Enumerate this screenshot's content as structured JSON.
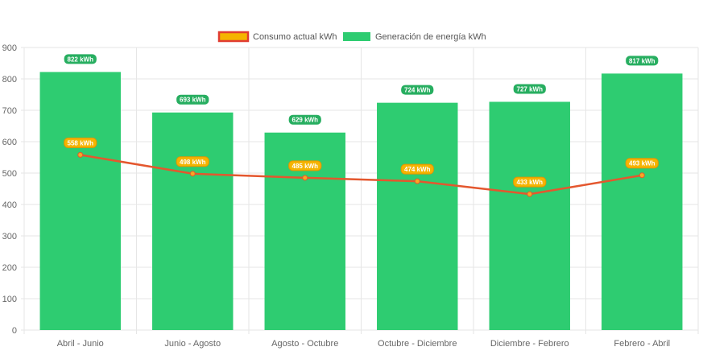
{
  "colors": {
    "bar_fill": "#2ecc71",
    "line_stroke": "#e4572e",
    "point_fill": "#f7a823",
    "consumo_label_bg": "#f5b400",
    "consumo_label_border": "#e59400",
    "generacion_label_bg": "#27ae60",
    "legend_consumo_fill": "#f5b400",
    "legend_consumo_border": "#e03c31",
    "grid": "#e6e6e6"
  },
  "chart_data": {
    "type": "bar",
    "categories": [
      "Abril - Junio",
      "Junio - Agosto",
      "Agosto - Octubre",
      "Octubre - Diciembre",
      "Diciembre - Febrero",
      "Febrero - Abril"
    ],
    "series": [
      {
        "name": "Consumo actual kWh",
        "type": "line",
        "values": [
          558,
          498,
          485,
          474,
          433,
          493
        ],
        "labels": [
          "558 kWh",
          "498 kWh",
          "485 kWh",
          "474 kWh",
          "433 kWh",
          "493 kWh"
        ]
      },
      {
        "name": "Generación de energía kWh",
        "type": "bar",
        "values": [
          822,
          693,
          629,
          724,
          727,
          817
        ],
        "labels": [
          "822 kWh",
          "693 kWh",
          "629 kWh",
          "724 kWh",
          "727 kWh",
          "817 kWh"
        ]
      }
    ],
    "ylim": [
      0,
      900
    ],
    "yticks": [
      "0",
      "100",
      "200",
      "300",
      "400",
      "500",
      "600",
      "700",
      "800",
      "900"
    ],
    "grid": true,
    "legend_position": "top-center"
  }
}
